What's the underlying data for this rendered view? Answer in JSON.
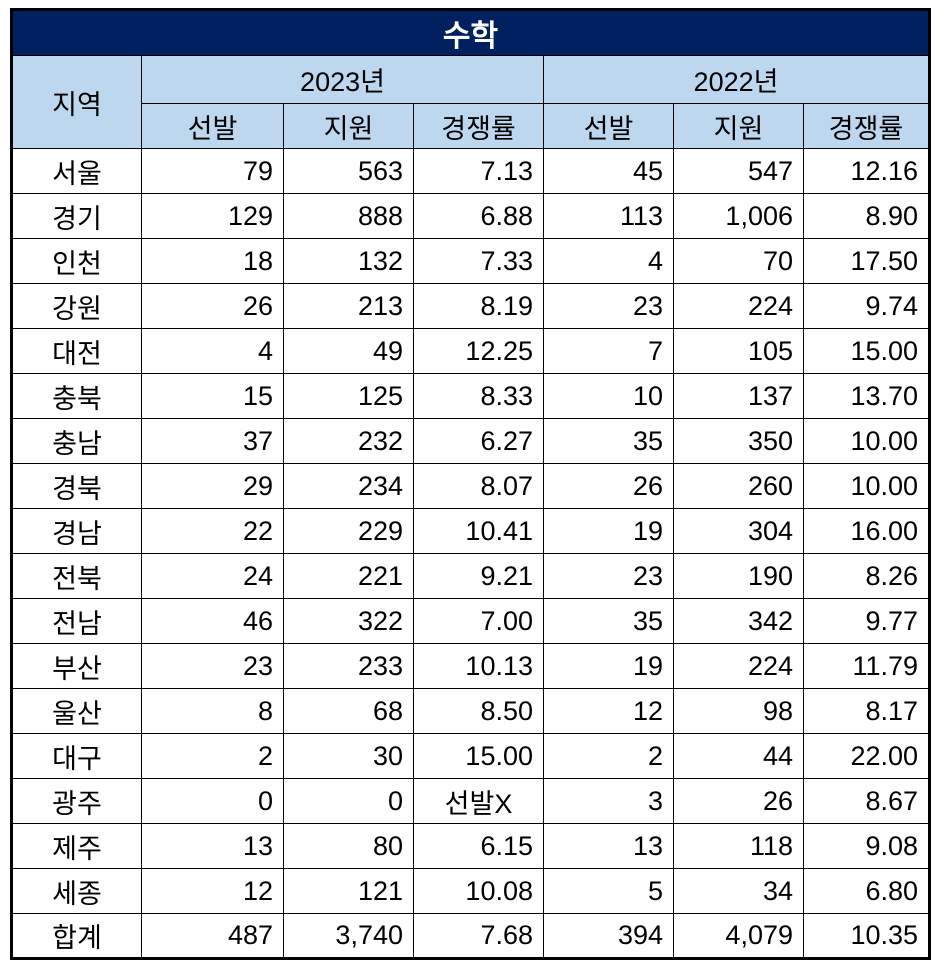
{
  "chart_data": {
    "type": "table",
    "title": "수학",
    "region_header": "지역",
    "year_groups": [
      {
        "label": "2023년"
      },
      {
        "label": "2022년"
      }
    ],
    "sub_headers": [
      "선발",
      "지원",
      "경쟁률",
      "선발",
      "지원",
      "경쟁률"
    ],
    "rows": [
      {
        "region": "서울",
        "values": [
          "79",
          "563",
          "7.13",
          "45",
          "547",
          "12.16"
        ]
      },
      {
        "region": "경기",
        "values": [
          "129",
          "888",
          "6.88",
          "113",
          "1,006",
          "8.90"
        ]
      },
      {
        "region": "인천",
        "values": [
          "18",
          "132",
          "7.33",
          "4",
          "70",
          "17.50"
        ]
      },
      {
        "region": "강원",
        "values": [
          "26",
          "213",
          "8.19",
          "23",
          "224",
          "9.74"
        ]
      },
      {
        "region": "대전",
        "values": [
          "4",
          "49",
          "12.25",
          "7",
          "105",
          "15.00"
        ]
      },
      {
        "region": "충북",
        "values": [
          "15",
          "125",
          "8.33",
          "10",
          "137",
          "13.70"
        ]
      },
      {
        "region": "충남",
        "values": [
          "37",
          "232",
          "6.27",
          "35",
          "350",
          "10.00"
        ]
      },
      {
        "region": "경북",
        "values": [
          "29",
          "234",
          "8.07",
          "26",
          "260",
          "10.00"
        ]
      },
      {
        "region": "경남",
        "values": [
          "22",
          "229",
          "10.41",
          "19",
          "304",
          "16.00"
        ]
      },
      {
        "region": "전북",
        "values": [
          "24",
          "221",
          "9.21",
          "23",
          "190",
          "8.26"
        ]
      },
      {
        "region": "전남",
        "values": [
          "46",
          "322",
          "7.00",
          "35",
          "342",
          "9.77"
        ]
      },
      {
        "region": "부산",
        "values": [
          "23",
          "233",
          "10.13",
          "19",
          "224",
          "11.79"
        ]
      },
      {
        "region": "울산",
        "values": [
          "8",
          "68",
          "8.50",
          "12",
          "98",
          "8.17"
        ]
      },
      {
        "region": "대구",
        "values": [
          "2",
          "30",
          "15.00",
          "2",
          "44",
          "22.00"
        ]
      },
      {
        "region": "광주",
        "values": [
          "0",
          "0",
          "선발X",
          "3",
          "26",
          "8.67"
        ]
      },
      {
        "region": "제주",
        "values": [
          "13",
          "80",
          "6.15",
          "13",
          "118",
          "9.08"
        ]
      },
      {
        "region": "세종",
        "values": [
          "12",
          "121",
          "10.08",
          "5",
          "34",
          "6.80"
        ]
      },
      {
        "region": "합계",
        "values": [
          "487",
          "3,740",
          "7.68",
          "394",
          "4,079",
          "10.35"
        ]
      }
    ]
  },
  "colors": {
    "title_bg": "#002060",
    "title_text": "#FFFFFF",
    "header_bg": "#BDD7EE",
    "border": "#000000",
    "cell_bg": "#FFFFFF"
  }
}
